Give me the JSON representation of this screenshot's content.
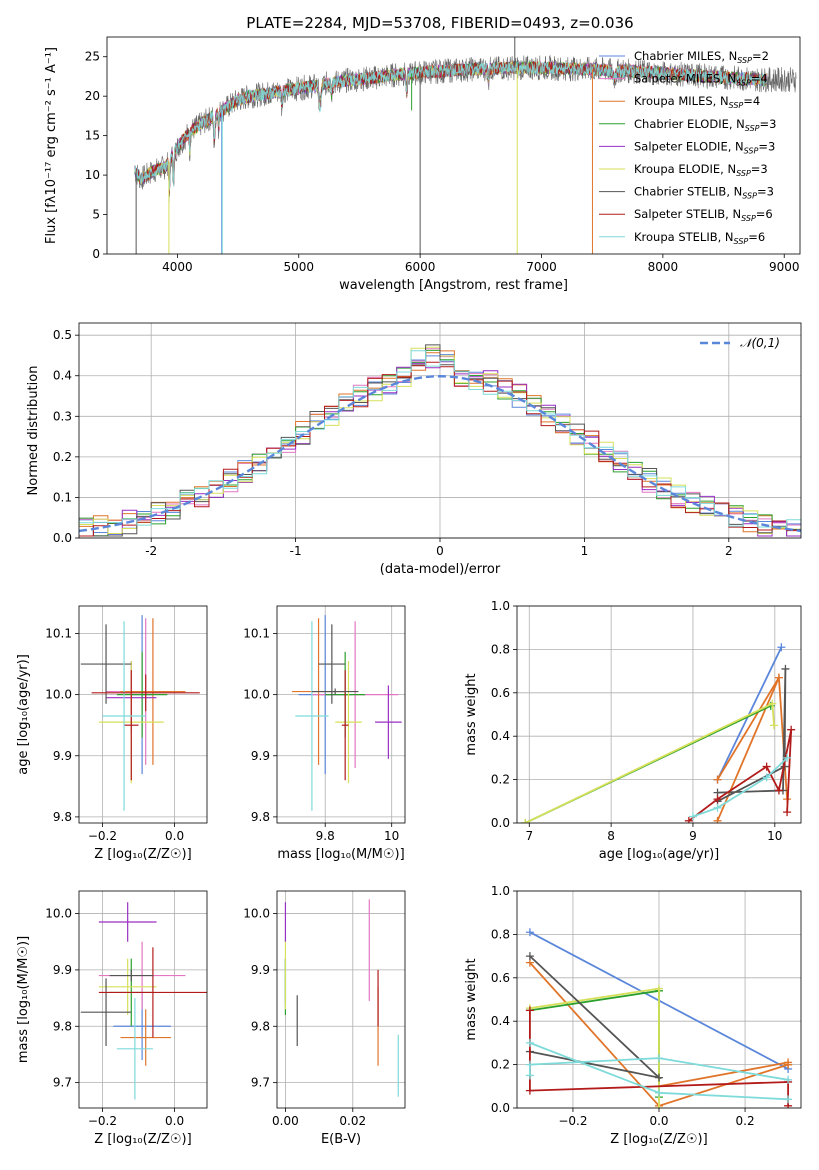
{
  "colors": {
    "Chabrier MILES": "#5b87db",
    "Salpeter MILES": "#e377c2",
    "Kroupa MILES": "#e0752a",
    "Chabrier ELODIE": "#2ca02c",
    "Salpeter ELODIE": "#9a2fc4",
    "Kroupa ELODIE": "#d6e05a",
    "Chabrier STELIB": "#555555",
    "Salpeter STELIB": "#b31b1b",
    "Kroupa STELIB": "#7fdada"
  },
  "chart_data": [
    {
      "id": "spectrum",
      "type": "line",
      "title": "PLATE=2284, MJD=53708, FIBERID=0493, z=0.036",
      "xlabel": "wavelength [Angstrom, rest frame]",
      "ylabel": "Flux [fλ10⁻¹⁷ erg cm⁻² s⁻¹ A⁻¹]",
      "xlim": [
        3420,
        9130
      ],
      "ylim": [
        0,
        27.5
      ],
      "xticks": [
        4000,
        5000,
        6000,
        7000,
        8000,
        9000
      ],
      "yticks": [
        0,
        5,
        10,
        15,
        20,
        25
      ],
      "grid": false,
      "legend_position": "top-right",
      "legend": [
        {
          "label": "Chabrier MILES, N",
          "sub": "SSP",
          "suffix": "=2",
          "series": "Chabrier MILES"
        },
        {
          "label": "Salpeter MILES, N",
          "sub": "SSP",
          "suffix": "=4",
          "series": "Salpeter MILES"
        },
        {
          "label": "Kroupa MILES, N",
          "sub": "SSP",
          "suffix": "=4",
          "series": "Kroupa MILES"
        },
        {
          "label": "Chabrier ELODIE, N",
          "sub": "SSP",
          "suffix": "=3",
          "series": "Chabrier ELODIE"
        },
        {
          "label": "Salpeter ELODIE, N",
          "sub": "SSP",
          "suffix": "=3",
          "series": "Salpeter ELODIE"
        },
        {
          "label": "Kroupa ELODIE, N",
          "sub": "SSP",
          "suffix": "=3",
          "series": "Kroupa ELODIE"
        },
        {
          "label": "Chabrier STELIB, N",
          "sub": "SSP",
          "suffix": "=3",
          "series": "Chabrier STELIB"
        },
        {
          "label": "Salpeter STELIB, N",
          "sub": "SSP",
          "suffix": "=6",
          "series": "Salpeter STELIB"
        },
        {
          "label": "Kroupa STELIB, N",
          "sub": "SSP",
          "suffix": "=6",
          "series": "Kroupa STELIB"
        }
      ],
      "continuum": {
        "x": [
          3650,
          3700,
          3800,
          3900,
          4000,
          4100,
          4200,
          4300,
          4400,
          4500,
          4600,
          4800,
          5000,
          5200,
          5400,
          5600,
          5800,
          6000,
          6200,
          6400,
          6600,
          6800,
          7000,
          7200,
          7400,
          7600,
          7800,
          8000,
          8200,
          8400,
          8600,
          8800
        ],
        "y": [
          10.5,
          9.5,
          10.5,
          11.0,
          13.5,
          15.5,
          16.5,
          17.5,
          18.5,
          19.5,
          20.0,
          20.5,
          21.0,
          21.5,
          22.0,
          22.3,
          22.7,
          23.0,
          23.2,
          23.4,
          23.5,
          23.6,
          23.6,
          23.5,
          23.4,
          23.3,
          23.1,
          22.9,
          22.7,
          22.5,
          22.3,
          22.1
        ]
      },
      "data_range": [
        3650,
        9100
      ],
      "model_range": [
        3650,
        8850
      ],
      "lines": [
        {
          "x": 3934,
          "depth": 4.5,
          "width": 6
        },
        {
          "x": 3969,
          "depth": 4.0,
          "width": 6
        },
        {
          "x": 4102,
          "depth": 2.5,
          "width": 5
        },
        {
          "x": 4304,
          "depth": 3.5,
          "width": 8
        },
        {
          "x": 4341,
          "depth": 2.0,
          "width": 5
        },
        {
          "x": 4861,
          "depth": 2.0,
          "width": 6
        },
        {
          "x": 5175,
          "depth": 3.0,
          "width": 12
        },
        {
          "x": 5270,
          "depth": 1.5,
          "width": 6
        },
        {
          "x": 5890,
          "depth": 2.5,
          "width": 8
        },
        {
          "x": 6563,
          "depth": 1.5,
          "width": 6
        },
        {
          "x": 7600,
          "depth": 1.0,
          "width": 20
        }
      ],
      "spikes": [
        {
          "x": 3660,
          "series": "Chabrier STELIB",
          "to": 0
        },
        {
          "x": 3930,
          "series": "Kroupa ELODIE",
          "to": 0
        },
        {
          "x": 4365,
          "series": "Chabrier MILES",
          "to": 0
        },
        {
          "x": 4370,
          "series": "Kroupa STELIB",
          "to": 0
        },
        {
          "x": 5930,
          "series": "Chabrier ELODIE",
          "to": 18.2
        },
        {
          "x": 6000,
          "series": "Chabrier STELIB",
          "to": 0
        },
        {
          "x": 6800,
          "series": "Kroupa ELODIE",
          "to": 0
        },
        {
          "x": 7420,
          "series": "Kroupa MILES",
          "to": 0
        },
        {
          "x": 6780,
          "series": "Chabrier STELIB",
          "to": 27.5
        }
      ]
    },
    {
      "id": "residuals",
      "type": "histogram",
      "xlabel": "(data-model)/error",
      "ylabel": "Normed distribution",
      "xlim": [
        -2.5,
        2.5
      ],
      "ylim": [
        0,
        0.53
      ],
      "xticks": [
        -2,
        -1,
        0,
        1,
        2
      ],
      "yticks": [
        0.0,
        0.1,
        0.2,
        0.3,
        0.4,
        0.5
      ],
      "grid": true,
      "bin_width": 0.1,
      "reference_curve": {
        "label": "𝒩(0,1)",
        "color": "#5b87db",
        "style": "dashed"
      },
      "legend_position": "top-right",
      "series_order": [
        "Chabrier MILES",
        "Salpeter MILES",
        "Kroupa MILES",
        "Chabrier ELODIE",
        "Salpeter ELODIE",
        "Kroupa ELODIE",
        "Chabrier STELIB",
        "Salpeter STELIB",
        "Kroupa STELIB"
      ],
      "jitter_seeds": [
        11,
        23,
        37,
        41,
        53,
        67,
        71,
        83,
        97
      ]
    },
    {
      "id": "age_vs_Z",
      "type": "scatter",
      "xlabel": "Z [log₁₀(Z/Z☉)]",
      "ylabel": "age  [log₁₀(age/yr)]",
      "xlim": [
        -0.265,
        0.09
      ],
      "ylim": [
        9.79,
        10.145
      ],
      "xticks": [
        -0.2,
        0.0
      ],
      "xticklabels": [
        "−0.2",
        "0.0"
      ],
      "yticks": [
        9.8,
        9.9,
        10.0,
        10.1
      ],
      "grid": true,
      "points": [
        {
          "series": "Chabrier MILES",
          "x": -0.09,
          "y": 10.0,
          "xerr": 0.03,
          "yerr": 0.13
        },
        {
          "series": "Salpeter MILES",
          "x": -0.08,
          "y": 10.005,
          "xerr": 0.11,
          "yerr": 0.12
        },
        {
          "series": "Kroupa MILES",
          "x": -0.06,
          "y": 10.005,
          "xerr": 0.09,
          "yerr": 0.12
        },
        {
          "series": "Chabrier ELODIE",
          "x": -0.09,
          "y": 10.0,
          "xerr": 0.07,
          "yerr": 0.07
        },
        {
          "series": "Salpeter ELODIE",
          "x": -0.12,
          "y": 9.995,
          "xerr": 0.07,
          "yerr": 0.06
        },
        {
          "series": "Kroupa ELODIE",
          "x": -0.12,
          "y": 9.955,
          "xerr": 0.09,
          "yerr": 0.1
        },
        {
          "series": "Chabrier STELIB",
          "x": -0.19,
          "y": 10.05,
          "xerr": 0.07,
          "yerr": 0.065
        },
        {
          "series": "Salpeter STELIB",
          "x": -0.12,
          "y": 9.95,
          "xerr": 0.02,
          "yerr": 0.09
        },
        {
          "series": "Kroupa STELIB",
          "x": -0.14,
          "y": 9.965,
          "xerr": 0.06,
          "yerr": 0.155
        },
        {
          "series": "Salpeter STELIB",
          "x": -0.08,
          "y": 10.003,
          "xerr": 0.15,
          "yerr": 0.03
        }
      ]
    },
    {
      "id": "age_vs_mass",
      "type": "scatter",
      "xlabel": "mass [log₁₀(M/M☉)]",
      "ylabel": "",
      "xlim": [
        9.655,
        10.04
      ],
      "ylim": [
        9.79,
        10.145
      ],
      "xticks": [
        9.8,
        10.0
      ],
      "yticks": [
        9.8,
        9.9,
        10.0,
        10.1
      ],
      "grid": true,
      "points": [
        {
          "series": "Chabrier MILES",
          "x": 9.8,
          "y": 10.0,
          "xerr": 0.08,
          "yerr": 0.13
        },
        {
          "series": "Salpeter MILES",
          "x": 9.89,
          "y": 10.0,
          "xerr": 0.13,
          "yerr": 0.12
        },
        {
          "series": "Kroupa MILES",
          "x": 9.78,
          "y": 10.005,
          "xerr": 0.08,
          "yerr": 0.12
        },
        {
          "series": "Chabrier ELODIE",
          "x": 9.86,
          "y": 10.0,
          "xerr": 0.06,
          "yerr": 0.07
        },
        {
          "series": "Salpeter ELODIE",
          "x": 9.99,
          "y": 9.955,
          "xerr": 0.04,
          "yerr": 0.06
        },
        {
          "series": "Kroupa ELODIE",
          "x": 9.87,
          "y": 9.955,
          "xerr": 0.04,
          "yerr": 0.1
        },
        {
          "series": "Chabrier STELIB",
          "x": 9.82,
          "y": 10.05,
          "xerr": 0.04,
          "yerr": 0.065
        },
        {
          "series": "Salpeter STELIB",
          "x": 9.86,
          "y": 9.95,
          "xerr": 0.01,
          "yerr": 0.09
        },
        {
          "series": "Kroupa STELIB",
          "x": 9.76,
          "y": 9.965,
          "xerr": 0.05,
          "yerr": 0.155
        },
        {
          "series": "Chabrier STELIB",
          "x": 9.83,
          "y": 10.005,
          "xerr": 0.07,
          "yerr": 0.005
        }
      ]
    },
    {
      "id": "weight_vs_age",
      "type": "line",
      "xlabel": "age  [log₁₀(age/yr)]",
      "ylabel": "mass weight",
      "xlim": [
        6.85,
        10.32
      ],
      "ylim": [
        0,
        1
      ],
      "xticks": [
        7,
        8,
        9,
        10
      ],
      "yticks": [
        0.0,
        0.2,
        0.4,
        0.6,
        0.8,
        1.0
      ],
      "grid": true,
      "series": [
        {
          "series": "Chabrier MILES",
          "x": [
            9.3,
            10.08
          ],
          "y": [
            0.2,
            0.81
          ]
        },
        {
          "series": "Kroupa MILES",
          "x": [
            9.3,
            10.05,
            10.15
          ],
          "y": [
            0.2,
            0.67,
            0.11
          ]
        },
        {
          "series": "Kroupa MILES",
          "x": [
            9.3,
            10.05
          ],
          "y": [
            0.01,
            0.67
          ]
        },
        {
          "series": "Chabrier ELODIE",
          "x": [
            6.95,
            9.95
          ],
          "y": [
            0.0,
            0.54
          ]
        },
        {
          "series": "Kroupa ELODIE",
          "x": [
            6.95,
            9.97,
            9.99
          ],
          "y": [
            0.0,
            0.55,
            0.45
          ]
        },
        {
          "series": "Chabrier STELIB",
          "x": [
            9.3,
            10.1,
            10.13,
            10.12,
            9.3
          ],
          "y": [
            0.14,
            0.15,
            0.71,
            0.26,
            0.1
          ]
        },
        {
          "series": "Salpeter STELIB",
          "x": [
            8.95,
            9.3,
            9.9,
            10.05,
            10.2,
            10.15
          ],
          "y": [
            0.01,
            0.11,
            0.26,
            0.15,
            0.43,
            0.05
          ]
        },
        {
          "series": "Kroupa STELIB",
          "x": [
            9.0,
            9.3,
            9.9,
            10.15
          ],
          "y": [
            0.03,
            0.07,
            0.21,
            0.3
          ]
        }
      ]
    },
    {
      "id": "mass_vs_Z",
      "type": "scatter",
      "xlabel": "Z [log₁₀(Z/Z☉)]",
      "ylabel": "mass [log₁₀(M/M☉)]",
      "xlim": [
        -0.265,
        0.09
      ],
      "ylim": [
        9.655,
        10.04
      ],
      "xticks": [
        -0.2,
        0.0
      ],
      "xticklabels": [
        "−0.2",
        "0.0"
      ],
      "yticks": [
        9.7,
        9.8,
        9.9,
        10.0
      ],
      "grid": true,
      "points": [
        {
          "series": "Chabrier MILES",
          "x": -0.09,
          "y": 9.8,
          "xerr": 0.08,
          "yerr": 0.06
        },
        {
          "series": "Salpeter MILES",
          "x": -0.09,
          "y": 9.89,
          "xerr": 0.12,
          "yerr": 0.06
        },
        {
          "series": "Kroupa MILES",
          "x": -0.08,
          "y": 9.78,
          "xerr": 0.07,
          "yerr": 0.05
        },
        {
          "series": "Chabrier ELODIE",
          "x": -0.12,
          "y": 9.86,
          "xerr": 0.06,
          "yerr": 0.06
        },
        {
          "series": "Salpeter ELODIE",
          "x": -0.13,
          "y": 9.985,
          "xerr": 0.08,
          "yerr": 0.035
        },
        {
          "series": "Kroupa ELODIE",
          "x": -0.13,
          "y": 9.87,
          "xerr": 0.08,
          "yerr": 0.05
        },
        {
          "series": "Chabrier STELIB",
          "x": -0.19,
          "y": 9.825,
          "xerr": 0.07,
          "yerr": 0.06
        },
        {
          "series": "Salpeter STELIB",
          "x": -0.06,
          "y": 9.86,
          "xerr": 0.15,
          "yerr": 0.08
        },
        {
          "series": "Kroupa STELIB",
          "x": -0.11,
          "y": 9.76,
          "xerr": 0.05,
          "yerr": 0.09
        },
        {
          "series": "Chabrier STELIB",
          "x": -0.12,
          "y": 9.89,
          "xerr": 0.06,
          "yerr": 0.01
        }
      ]
    },
    {
      "id": "mass_vs_ebv",
      "type": "scatter",
      "xlabel": "E(B-V)",
      "ylabel": "",
      "xlim": [
        -0.0025,
        0.0355
      ],
      "ylim": [
        9.655,
        10.04
      ],
      "xticks": [
        0.0,
        0.02
      ],
      "xticklabels": [
        "0.00",
        "0.02"
      ],
      "yticks": [
        9.7,
        9.8,
        9.9,
        10.0
      ],
      "grid": true,
      "points": [
        {
          "series": "Chabrier MILES",
          "x": 0.0,
          "y": 9.88,
          "xerr": 0.0,
          "yerr": 0.04
        },
        {
          "series": "Salpeter MILES",
          "x": 0.0249,
          "y": 9.935,
          "xerr": 0.0,
          "yerr": 0.09
        },
        {
          "series": "Kroupa MILES",
          "x": 0.0275,
          "y": 9.8,
          "xerr": 0.0,
          "yerr": 0.07
        },
        {
          "series": "Chabrier ELODIE",
          "x": 0.0,
          "y": 9.87,
          "xerr": 0.0,
          "yerr": 0.05
        },
        {
          "series": "Salpeter ELODIE",
          "x": 0.0,
          "y": 9.985,
          "xerr": 0.0,
          "yerr": 0.035
        },
        {
          "series": "Kroupa ELODIE",
          "x": 0.0,
          "y": 9.89,
          "xerr": 0.0,
          "yerr": 0.06
        },
        {
          "series": "Chabrier STELIB",
          "x": 0.0035,
          "y": 9.81,
          "xerr": 0.0,
          "yerr": 0.045
        },
        {
          "series": "Salpeter STELIB",
          "x": 0.0275,
          "y": 9.85,
          "xerr": 0.0,
          "yerr": 0.05
        },
        {
          "series": "Kroupa STELIB",
          "x": 0.0335,
          "y": 9.73,
          "xerr": 0.0,
          "yerr": 0.055
        }
      ]
    },
    {
      "id": "weight_vs_Z",
      "type": "line",
      "xlabel": "Z [log₁₀(Z/Z☉)]",
      "ylabel": "mass weight",
      "xlim": [
        -0.33,
        0.33
      ],
      "ylim": [
        0,
        1
      ],
      "xticks": [
        -0.2,
        0.0,
        0.2
      ],
      "xticklabels": [
        "−0.2",
        "0.0",
        "0.2"
      ],
      "yticks": [
        0.0,
        0.2,
        0.4,
        0.6,
        0.8,
        1.0
      ],
      "grid": true,
      "series": [
        {
          "series": "Chabrier MILES",
          "x": [
            -0.3,
            0.3
          ],
          "y": [
            0.81,
            0.18
          ]
        },
        {
          "series": "Kroupa MILES",
          "x": [
            -0.3,
            0.0,
            0.3,
            0.3
          ],
          "y": [
            0.67,
            0.01,
            0.2,
            0.2
          ]
        },
        {
          "series": "Kroupa MILES",
          "x": [
            0.0,
            0.3
          ],
          "y": [
            0.1,
            0.21
          ]
        },
        {
          "series": "Chabrier ELODIE",
          "x": [
            -0.3,
            0.0,
            0.0
          ],
          "y": [
            0.45,
            0.54,
            0.05
          ]
        },
        {
          "series": "Kroupa ELODIE",
          "x": [
            -0.3,
            0.0,
            0.0
          ],
          "y": [
            0.46,
            0.55,
            0.0
          ]
        },
        {
          "series": "Chabrier STELIB",
          "x": [
            -0.3,
            0.0,
            -0.3
          ],
          "y": [
            0.7,
            0.14,
            0.26
          ]
        },
        {
          "series": "Salpeter STELIB",
          "x": [
            -0.3,
            -0.3,
            0.3,
            0.3
          ],
          "y": [
            0.45,
            0.08,
            0.12,
            0.01
          ]
        },
        {
          "series": "Kroupa STELIB",
          "x": [
            -0.3,
            0.0,
            0.3
          ],
          "y": [
            0.3,
            0.07,
            0.04
          ]
        },
        {
          "series": "Kroupa STELIB",
          "x": [
            -0.3,
            -0.3,
            0.0,
            0.3
          ],
          "y": [
            0.15,
            0.2,
            0.23,
            0.13
          ]
        }
      ]
    }
  ]
}
